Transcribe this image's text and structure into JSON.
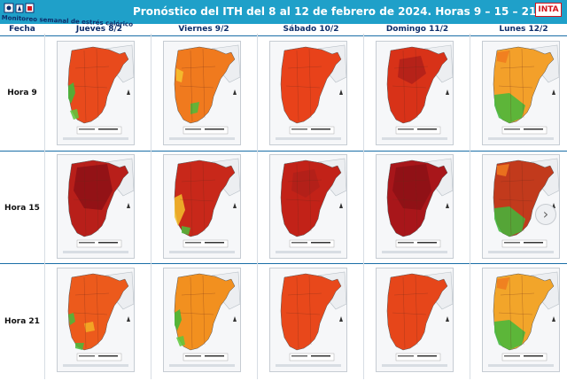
{
  "header": {
    "monitor_label": "Monitoreo semanal de estrés calórico",
    "title": "Pronóstico del ITH del 8 al 12 de febrero de 2024. Horas 9 – 15 – 21",
    "inta_logo_text": "INTA",
    "bar_color": "#1fa0c9"
  },
  "table": {
    "fecha_label": "Fecha",
    "columns": [
      "Jueves 8/2",
      "Viernes 9/2",
      "Sábado 10/2",
      "Domingo 11/2",
      "Lunes 12/2"
    ],
    "rows": [
      "Hora 9",
      "Hora 15",
      "Hora 21"
    ]
  },
  "maps": [
    [
      "#e84a1c",
      "#f07a1e",
      "#e8421a",
      "#d83218",
      "#f3a02a"
    ],
    [
      "#b81f1a",
      "#c8281a",
      "#c22218",
      "#a8161a",
      "#c23a1c"
    ],
    [
      "#ec5a1c",
      "#f2901f",
      "#e8481b",
      "#e6461a",
      "#f2a52a"
    ]
  ],
  "map_extra": [
    [
      "green-west",
      "yellow-patches",
      "orange",
      "dark",
      "green-south"
    ],
    [
      "darkest",
      "yellow-west",
      "dark",
      "darkest",
      "green-south"
    ],
    [
      "green-patches",
      "green-west",
      "orange",
      "orange",
      "green-south"
    ]
  ],
  "next_icon": "›"
}
